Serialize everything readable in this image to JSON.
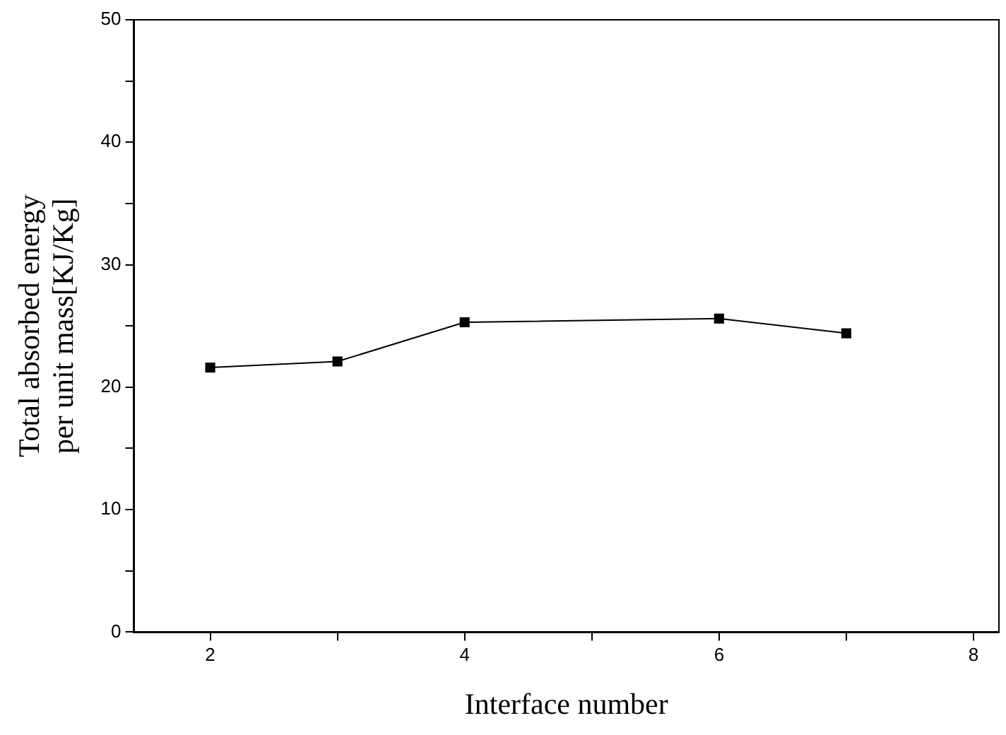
{
  "chart_data": {
    "type": "line",
    "xlabel": "Interface number",
    "ylabel": "Total absorbed energy\nper unit mass[KJ/Kg]",
    "x": [
      2,
      3,
      4,
      6,
      7
    ],
    "series": [
      {
        "color": "#000000",
        "values": [
          21.6,
          22.1,
          25.3,
          25.6,
          24.4
        ]
      }
    ],
    "xlim": [
      1.4,
      8.2
    ],
    "xticks": [
      2,
      {
        "value": 3,
        "label": null
      },
      4,
      {
        "value": 5,
        "label": null
      },
      6,
      {
        "value": 7,
        "label": null
      },
      8
    ],
    "ylim": [
      0,
      50
    ],
    "yticks": [
      0,
      {
        "value": 5,
        "label": null
      },
      10,
      {
        "value": 15,
        "label": null
      },
      20,
      {
        "value": 25,
        "label": null
      },
      30,
      {
        "value": 35,
        "label": null
      },
      40,
      {
        "value": 45,
        "label": null
      },
      50
    ],
    "grid": false,
    "legend": false,
    "marker": "square",
    "line_style": "solid"
  }
}
